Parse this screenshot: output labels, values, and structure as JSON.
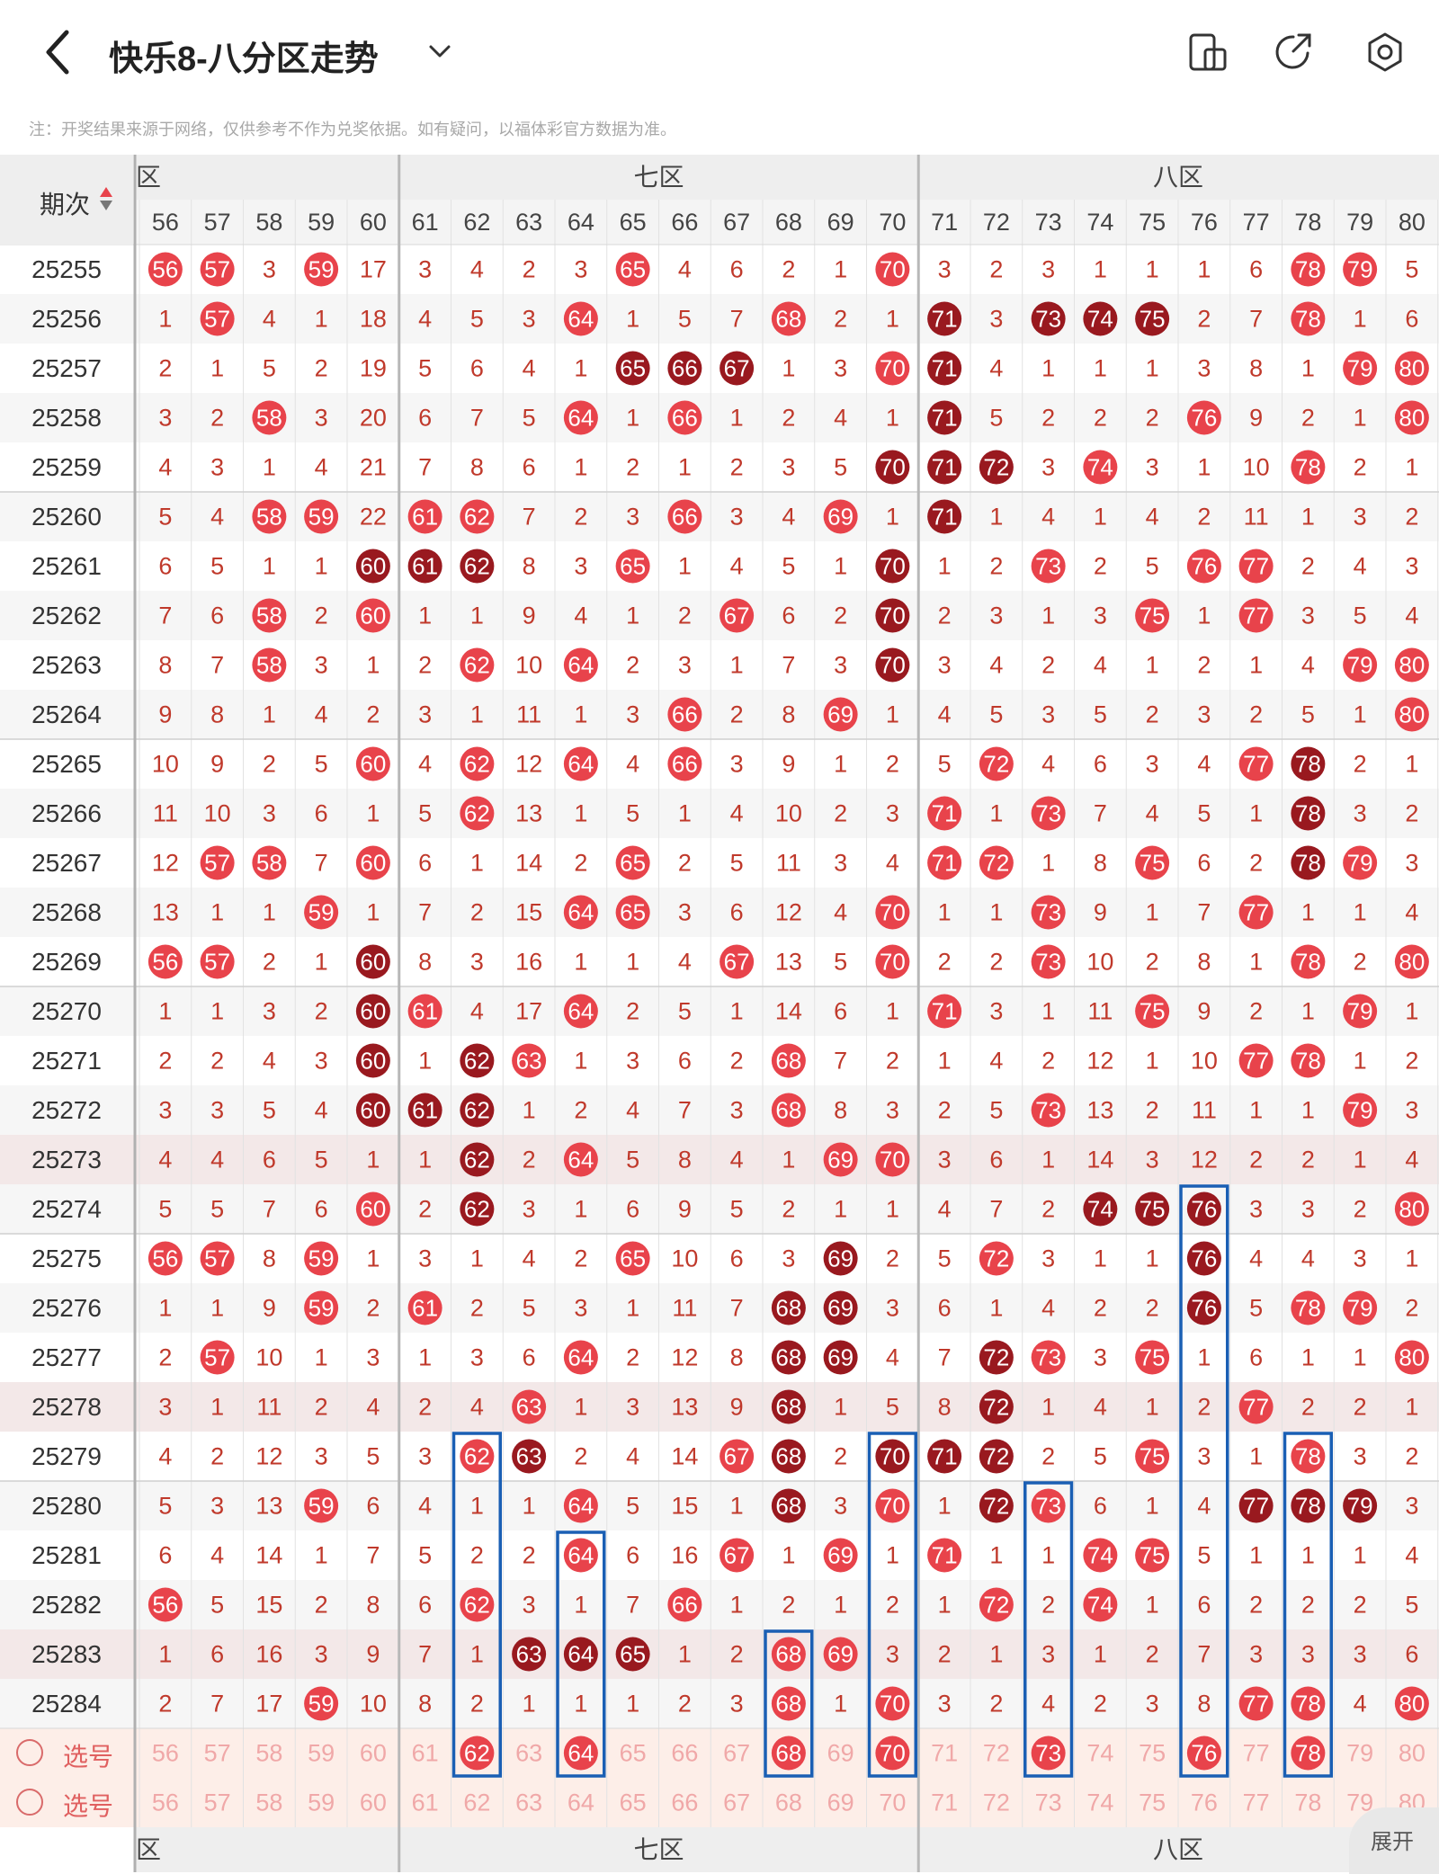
{
  "header": {
    "title": "快乐8-八分区走势",
    "back_icon": "chevron-left-icon",
    "dropdown_icon": "chevron-down-icon",
    "icons": [
      "phone-portrait-icon",
      "share-icon",
      "settings-icon"
    ]
  },
  "note": "注：开奖结果来源于网络，仅供参考不作为兑奖依据。如有疑问，以福体彩官方数据为准。",
  "table": {
    "period_header": "期次",
    "zones": [
      {
        "label": "六区",
        "visible_label": "六区",
        "from": 56,
        "to": 60
      },
      {
        "label": "七区",
        "from": 61,
        "to": 70
      },
      {
        "label": "八区",
        "from": 71,
        "to": 80
      }
    ],
    "columns": [
      56,
      57,
      58,
      59,
      60,
      61,
      62,
      63,
      64,
      65,
      66,
      67,
      68,
      69,
      70,
      71,
      72,
      73,
      74,
      75,
      76,
      77,
      78,
      79,
      80
    ],
    "periods": [
      "25255",
      "25256",
      "25257",
      "25258",
      "25259",
      "25260",
      "25261",
      "25262",
      "25263",
      "25264",
      "25265",
      "25266",
      "25267",
      "25268",
      "25269",
      "25270",
      "25271",
      "25272",
      "25273",
      "25274",
      "25275",
      "25276",
      "25277",
      "25278",
      "25279",
      "25280",
      "25281",
      "25282",
      "25283",
      "25284"
    ],
    "hit_color": "#e8434b",
    "repeat_color": "#99191f",
    "miss_color": "#c0392b",
    "rows": [
      {
        "period": "25255",
        "cells": [
          "H",
          "H",
          "3",
          "H",
          "17",
          "3",
          "4",
          "2",
          "3",
          "H",
          "4",
          "6",
          "2",
          "1",
          "H",
          "3",
          "2",
          "3",
          "1",
          "1",
          "1",
          "6",
          "H",
          "H",
          "5"
        ],
        "repeat": []
      },
      {
        "period": "25256",
        "cells": [
          "1",
          "H",
          "4",
          "1",
          "18",
          "4",
          "5",
          "3",
          "H",
          "1",
          "5",
          "7",
          "H",
          "2",
          "1",
          "R",
          "3",
          "R",
          "R",
          "R",
          "2",
          "7",
          "H",
          "1",
          "6"
        ],
        "repeat": [
          15,
          17,
          18,
          19
        ]
      },
      {
        "period": "25257",
        "cells": [
          "2",
          "1",
          "5",
          "2",
          "19",
          "5",
          "6",
          "4",
          "1",
          "R",
          "R",
          "R",
          "1",
          "3",
          "H",
          "R",
          "4",
          "1",
          "1",
          "1",
          "3",
          "8",
          "1",
          "H",
          "H"
        ],
        "repeat": [
          9,
          10,
          11,
          15
        ]
      },
      {
        "period": "25258",
        "cells": [
          "3",
          "2",
          "H",
          "3",
          "20",
          "6",
          "7",
          "5",
          "H",
          "1",
          "H",
          "1",
          "2",
          "4",
          "1",
          "R",
          "5",
          "2",
          "2",
          "2",
          "H",
          "9",
          "2",
          "1",
          "H"
        ],
        "repeat": [
          15
        ]
      },
      {
        "period": "25259",
        "cells": [
          "4",
          "3",
          "1",
          "4",
          "21",
          "7",
          "8",
          "6",
          "1",
          "2",
          "1",
          "2",
          "3",
          "5",
          "R",
          "R",
          "R",
          "3",
          "H",
          "3",
          "1",
          "10",
          "H",
          "2",
          "1"
        ],
        "repeat": [
          14,
          15,
          16
        ]
      },
      {
        "period": "25260",
        "cells": [
          "5",
          "4",
          "H",
          "H",
          "22",
          "H",
          "H",
          "7",
          "2",
          "3",
          "H",
          "3",
          "4",
          "H",
          "1",
          "R",
          "1",
          "4",
          "1",
          "4",
          "2",
          "11",
          "1",
          "3",
          "2"
        ],
        "repeat": [
          15
        ]
      },
      {
        "period": "25261",
        "cells": [
          "6",
          "5",
          "1",
          "1",
          "R",
          "R",
          "R",
          "8",
          "3",
          "H",
          "1",
          "4",
          "5",
          "1",
          "R",
          "1",
          "2",
          "H",
          "2",
          "5",
          "H",
          "H",
          "2",
          "4",
          "3"
        ],
        "repeat": [
          4,
          5,
          6,
          14
        ]
      },
      {
        "period": "25262",
        "cells": [
          "7",
          "6",
          "H",
          "2",
          "H",
          "1",
          "1",
          "9",
          "4",
          "1",
          "2",
          "H",
          "6",
          "2",
          "R",
          "2",
          "3",
          "1",
          "3",
          "H",
          "1",
          "H",
          "3",
          "5",
          "4"
        ],
        "repeat": [
          14
        ]
      },
      {
        "period": "25263",
        "cells": [
          "8",
          "7",
          "H",
          "3",
          "1",
          "2",
          "H",
          "10",
          "H",
          "2",
          "3",
          "1",
          "7",
          "3",
          "R",
          "3",
          "4",
          "2",
          "4",
          "1",
          "2",
          "1",
          "4",
          "H",
          "H"
        ],
        "repeat": [
          14
        ]
      },
      {
        "period": "25264",
        "cells": [
          "9",
          "8",
          "1",
          "4",
          "2",
          "3",
          "1",
          "11",
          "1",
          "3",
          "H",
          "2",
          "8",
          "H",
          "1",
          "4",
          "5",
          "3",
          "5",
          "2",
          "3",
          "2",
          "5",
          "1",
          "H"
        ],
        "repeat": []
      },
      {
        "period": "25265",
        "cells": [
          "10",
          "9",
          "2",
          "5",
          "H",
          "4",
          "H",
          "12",
          "H",
          "4",
          "H",
          "3",
          "9",
          "1",
          "2",
          "5",
          "H",
          "4",
          "6",
          "3",
          "4",
          "H",
          "R",
          "2",
          "1"
        ],
        "repeat": [
          22
        ]
      },
      {
        "period": "25266",
        "cells": [
          "11",
          "10",
          "3",
          "6",
          "1",
          "5",
          "H",
          "13",
          "1",
          "5",
          "1",
          "4",
          "10",
          "2",
          "3",
          "H",
          "1",
          "H",
          "7",
          "4",
          "5",
          "1",
          "R",
          "3",
          "2"
        ],
        "repeat": [
          22
        ]
      },
      {
        "period": "25267",
        "cells": [
          "12",
          "H",
          "H",
          "7",
          "H",
          "6",
          "1",
          "14",
          "2",
          "H",
          "2",
          "5",
          "11",
          "3",
          "4",
          "H",
          "H",
          "1",
          "8",
          "H",
          "6",
          "2",
          "R",
          "H",
          "3"
        ],
        "repeat": [
          22
        ]
      },
      {
        "period": "25268",
        "cells": [
          "13",
          "1",
          "1",
          "H",
          "1",
          "7",
          "2",
          "15",
          "H",
          "H",
          "3",
          "6",
          "12",
          "4",
          "H",
          "1",
          "1",
          "H",
          "9",
          "1",
          "7",
          "H",
          "1",
          "1",
          "4"
        ],
        "repeat": []
      },
      {
        "period": "25269",
        "cells": [
          "H",
          "H",
          "2",
          "1",
          "R",
          "8",
          "3",
          "16",
          "1",
          "1",
          "4",
          "H",
          "13",
          "5",
          "H",
          "2",
          "2",
          "H",
          "10",
          "2",
          "8",
          "1",
          "H",
          "2",
          "H"
        ],
        "repeat": [
          4
        ]
      },
      {
        "period": "25270",
        "cells": [
          "1",
          "1",
          "3",
          "2",
          "R",
          "H",
          "4",
          "17",
          "H",
          "2",
          "5",
          "1",
          "14",
          "6",
          "1",
          "H",
          "3",
          "1",
          "11",
          "H",
          "9",
          "2",
          "1",
          "H",
          "1"
        ],
        "repeat": [
          4
        ]
      },
      {
        "period": "25271",
        "cells": [
          "2",
          "2",
          "4",
          "3",
          "R",
          "1",
          "R",
          "H",
          "1",
          "3",
          "6",
          "2",
          "H",
          "7",
          "2",
          "1",
          "4",
          "2",
          "12",
          "1",
          "10",
          "H",
          "H",
          "1",
          "2"
        ],
        "repeat": [
          4,
          6
        ]
      },
      {
        "period": "25272",
        "cells": [
          "3",
          "3",
          "5",
          "4",
          "R",
          "R",
          "R",
          "1",
          "2",
          "4",
          "7",
          "3",
          "H",
          "8",
          "3",
          "2",
          "5",
          "H",
          "13",
          "2",
          "11",
          "1",
          "1",
          "H",
          "3"
        ],
        "repeat": [
          4,
          5,
          6
        ]
      },
      {
        "period": "25273",
        "cells": [
          "4",
          "4",
          "6",
          "5",
          "1",
          "1",
          "R",
          "2",
          "H",
          "5",
          "8",
          "4",
          "1",
          "H",
          "H",
          "3",
          "6",
          "1",
          "14",
          "3",
          "12",
          "2",
          "2",
          "1",
          "4"
        ],
        "repeat": [
          6
        ]
      },
      {
        "period": "25274",
        "cells": [
          "5",
          "5",
          "7",
          "6",
          "H",
          "2",
          "R",
          "3",
          "1",
          "6",
          "9",
          "5",
          "2",
          "1",
          "1",
          "4",
          "7",
          "2",
          "R",
          "R",
          "R",
          "3",
          "3",
          "2",
          "H"
        ],
        "repeat": [
          6,
          18,
          19,
          20
        ]
      },
      {
        "period": "25275",
        "cells": [
          "H",
          "H",
          "8",
          "H",
          "1",
          "3",
          "1",
          "4",
          "2",
          "H",
          "10",
          "6",
          "3",
          "R",
          "2",
          "5",
          "H",
          "3",
          "1",
          "1",
          "R",
          "4",
          "4",
          "3",
          "1"
        ],
        "repeat": [
          13,
          20
        ]
      },
      {
        "period": "25276",
        "cells": [
          "1",
          "1",
          "9",
          "H",
          "2",
          "H",
          "2",
          "5",
          "3",
          "1",
          "11",
          "7",
          "R",
          "R",
          "3",
          "6",
          "1",
          "4",
          "2",
          "2",
          "R",
          "5",
          "H",
          "H",
          "2"
        ],
        "repeat": [
          12,
          13,
          20
        ]
      },
      {
        "period": "25277",
        "cells": [
          "2",
          "H",
          "10",
          "1",
          "3",
          "1",
          "3",
          "6",
          "H",
          "2",
          "12",
          "8",
          "R",
          "R",
          "4",
          "7",
          "R",
          "H",
          "3",
          "H",
          "1",
          "6",
          "1",
          "1",
          "H"
        ],
        "repeat": [
          12,
          13,
          16
        ]
      },
      {
        "period": "25278",
        "cells": [
          "3",
          "1",
          "11",
          "2",
          "4",
          "2",
          "4",
          "H",
          "1",
          "3",
          "13",
          "9",
          "R",
          "1",
          "5",
          "8",
          "R",
          "1",
          "4",
          "1",
          "2",
          "H",
          "2",
          "2",
          "1"
        ],
        "repeat": [
          12,
          16
        ]
      },
      {
        "period": "25279",
        "cells": [
          "4",
          "2",
          "12",
          "3",
          "5",
          "3",
          "H",
          "R",
          "2",
          "4",
          "14",
          "H",
          "R",
          "2",
          "R",
          "R",
          "R",
          "2",
          "5",
          "H",
          "3",
          "1",
          "H",
          "3",
          "2"
        ],
        "repeat": [
          7,
          12,
          14,
          15,
          16
        ]
      },
      {
        "period": "25280",
        "cells": [
          "5",
          "3",
          "13",
          "H",
          "6",
          "4",
          "1",
          "1",
          "H",
          "5",
          "15",
          "1",
          "R",
          "3",
          "H",
          "1",
          "R",
          "H",
          "6",
          "1",
          "4",
          "R",
          "R",
          "R",
          "3"
        ],
        "repeat": [
          12,
          16,
          21,
          22,
          23
        ]
      },
      {
        "period": "25281",
        "cells": [
          "6",
          "4",
          "14",
          "1",
          "7",
          "5",
          "2",
          "2",
          "H",
          "6",
          "16",
          "H",
          "1",
          "H",
          "1",
          "H",
          "1",
          "1",
          "H",
          "H",
          "5",
          "1",
          "1",
          "1",
          "4"
        ],
        "repeat": []
      },
      {
        "period": "25282",
        "cells": [
          "H",
          "5",
          "15",
          "2",
          "8",
          "6",
          "H",
          "3",
          "1",
          "7",
          "H",
          "1",
          "2",
          "1",
          "2",
          "1",
          "H",
          "2",
          "H",
          "1",
          "6",
          "2",
          "2",
          "2",
          "5"
        ],
        "repeat": []
      },
      {
        "period": "25283",
        "cells": [
          "1",
          "6",
          "16",
          "3",
          "9",
          "7",
          "1",
          "R",
          "R",
          "R",
          "1",
          "2",
          "H",
          "H",
          "3",
          "2",
          "1",
          "3",
          "1",
          "2",
          "7",
          "3",
          "3",
          "3",
          "6"
        ],
        "repeat": [
          7,
          8,
          9
        ]
      },
      {
        "period": "25284",
        "cells": [
          "2",
          "7",
          "17",
          "H",
          "10",
          "8",
          "2",
          "1",
          "1",
          "1",
          "2",
          "3",
          "H",
          "1",
          "H",
          "3",
          "2",
          "4",
          "2",
          "3",
          "8",
          "H",
          "H",
          "4",
          "H"
        ],
        "repeat": []
      }
    ],
    "shaded_rows": [
      "25273",
      "25278",
      "25283"
    ],
    "pick_rows": [
      {
        "label": "选号",
        "highlighted": [
          62,
          64,
          68,
          70,
          73,
          76,
          78
        ]
      },
      {
        "label": "选号",
        "highlighted": []
      }
    ],
    "highlight_color": "#1a5fb4"
  },
  "expand_label": "展开"
}
